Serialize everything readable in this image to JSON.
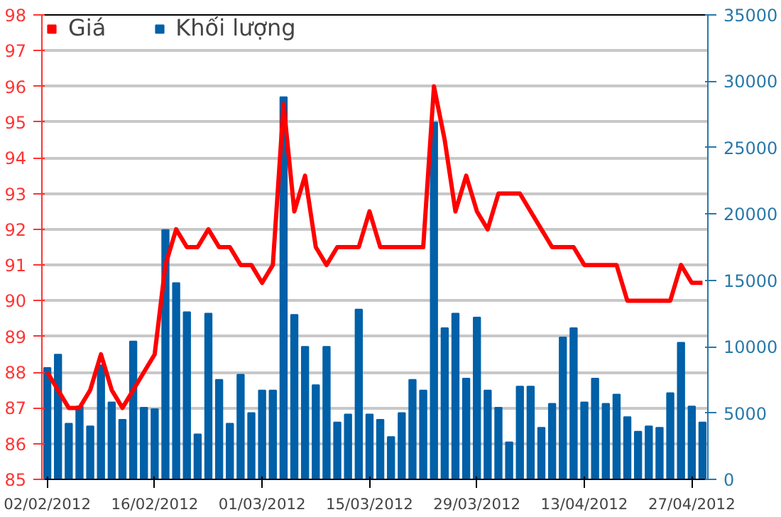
{
  "chart_data": {
    "type": "bar",
    "categories": [
      "02/02/2012",
      null,
      null,
      null,
      null,
      null,
      null,
      null,
      null,
      null,
      "16/02/2012",
      null,
      null,
      null,
      null,
      null,
      null,
      null,
      null,
      null,
      "01/03/2012",
      null,
      null,
      null,
      null,
      null,
      null,
      null,
      null,
      null,
      "15/03/2012",
      null,
      null,
      null,
      null,
      null,
      null,
      null,
      null,
      null,
      "29/03/2012",
      null,
      null,
      null,
      null,
      null,
      null,
      null,
      null,
      null,
      "13/04/2012",
      null,
      null,
      null,
      null,
      null,
      null,
      null,
      null,
      null,
      "27/04/2012",
      null
    ],
    "series": [
      {
        "name": "Khối lượng",
        "axis": "y2",
        "color": "#0060a8",
        "values": [
          8400,
          9400,
          4200,
          5500,
          4000,
          8600,
          5800,
          4500,
          10400,
          5400,
          5300,
          18800,
          14800,
          12600,
          3400,
          12500,
          7500,
          4200,
          7900,
          5000,
          6700,
          6700,
          28800,
          12400,
          10000,
          7100,
          10000,
          4300,
          4900,
          12800,
          4900,
          4500,
          3200,
          5000,
          7500,
          6700,
          26900,
          11400,
          12500,
          7600,
          12200,
          6700,
          5400,
          2800,
          7000,
          7000,
          3900,
          5700,
          10700,
          11400,
          5800,
          7600,
          5700,
          6400,
          4700,
          3600,
          4000,
          3900,
          6500,
          10300,
          5500,
          4300
        ]
      },
      {
        "name": "Giá",
        "type": "line",
        "axis": "y",
        "color": "#ff0000",
        "values": [
          88.0,
          87.5,
          87.0,
          87.0,
          87.5,
          88.5,
          87.5,
          87.0,
          87.5,
          88.0,
          88.5,
          91.0,
          92.0,
          91.5,
          91.5,
          92.0,
          91.5,
          91.5,
          91.0,
          91.0,
          90.5,
          91.0,
          95.5,
          92.5,
          93.5,
          91.5,
          91.0,
          91.5,
          91.5,
          91.5,
          92.5,
          91.5,
          91.5,
          91.5,
          91.5,
          91.5,
          96.0,
          94.5,
          92.5,
          93.5,
          92.5,
          92.0,
          93.0,
          93.0,
          93.0,
          92.5,
          92.0,
          91.5,
          91.5,
          91.5,
          91.0,
          91.0,
          91.0,
          91.0,
          90.0,
          90.0,
          90.0,
          90.0,
          90.0,
          91.0,
          90.5,
          90.5
        ]
      }
    ],
    "ylim": [
      85,
      98
    ],
    "yticks": [
      85,
      86,
      87,
      88,
      89,
      90,
      91,
      92,
      93,
      94,
      95,
      96,
      97,
      98
    ],
    "y2lim": [
      0,
      35000
    ],
    "y2ticks": [
      0,
      5000,
      10000,
      15000,
      20000,
      25000,
      30000,
      35000
    ],
    "grid": "y",
    "legend": "top left",
    "marker": "none",
    "line_style": "solid"
  }
}
